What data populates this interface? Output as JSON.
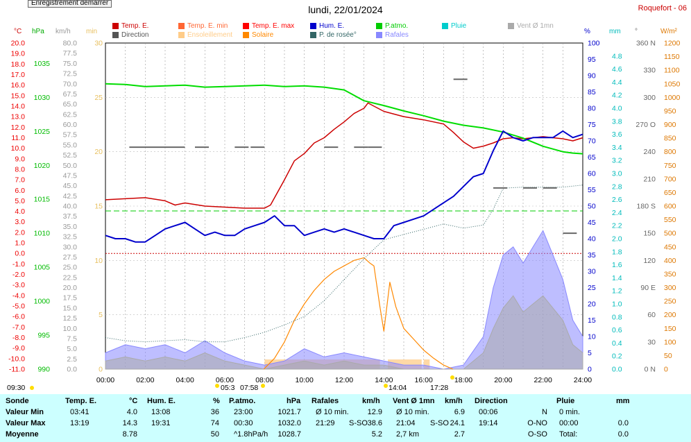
{
  "button": {
    "label": "Enregistrement démarrer"
  },
  "title": "lundi, 22/01/2024",
  "station": "Roquefort - 06",
  "units": {
    "temp": "°C",
    "hpa": "hPa",
    "kmh": "km/h",
    "min": "min",
    "pct": "%",
    "mm": "mm",
    "deg": "°",
    "wm2": "W/m²"
  },
  "legend": [
    {
      "label": "Temp. E.",
      "color": "#cc0000"
    },
    {
      "label": "Temp. E. min",
      "color": "#ff6633"
    },
    {
      "label": "Temp. E. max",
      "color": "#ff0000"
    },
    {
      "label": "Hum. E.",
      "color": "#0000cc"
    },
    {
      "label": "P.atmo.",
      "color": "#00cc00"
    },
    {
      "label": "Pluie",
      "color": "#00cccc"
    },
    {
      "label": "Vent Ø 1mn",
      "color": "#aaaaaa"
    },
    {
      "label": "Direction",
      "color": "#555555"
    },
    {
      "label": "Ensoleillement",
      "color": "#ffcc88"
    },
    {
      "label": "Solaire",
      "color": "#ff8800"
    },
    {
      "label": "P. de rosée°",
      "color": "#336666"
    },
    {
      "label": "Rafales",
      "color": "#8888ff"
    }
  ],
  "markers": {
    "sunrise_left": "09:30",
    "dawn": "05:3",
    "sunrise": "07:58",
    "max_sun": "14:04",
    "sunset": "17:28"
  },
  "chart_data": {
    "type": "line",
    "xlabel": "",
    "x_ticks": [
      "00:00",
      "02:00",
      "04:00",
      "06:00",
      "08:00",
      "10:00",
      "12:00",
      "14:00",
      "16:00",
      "18:00",
      "20:00",
      "22:00",
      "24:00"
    ],
    "axes": {
      "temp_c": {
        "range": [
          -11,
          20
        ],
        "ticks": [
          "20.0",
          "19.0",
          "18.0",
          "17.0",
          "16.0",
          "15.0",
          "14.0",
          "13.0",
          "12.0",
          "11.0",
          "10.0",
          "9.0",
          "8.0",
          "7.0",
          "6.0",
          "5.0",
          "4.0",
          "3.0",
          "2.0",
          "1.0",
          "0.0",
          "-1.0",
          "-2.0",
          "-3.0",
          "-4.0",
          "-5.0",
          "-6.0",
          "-7.0",
          "-8.0",
          "-9.0",
          "-10.0",
          "-11.0"
        ]
      },
      "pressure_hpa": {
        "range": [
          990,
          1038
        ],
        "ticks": [
          "1035",
          "1030",
          "1025",
          "1020",
          "1015",
          "1010",
          "1005",
          "1000",
          "995",
          "990"
        ]
      },
      "wind_kmh": {
        "range": [
          0,
          80
        ],
        "ticks": [
          "80.0",
          "77.5",
          "75.0",
          "72.5",
          "70.0",
          "67.5",
          "65.0",
          "62.5",
          "60.0",
          "57.5",
          "55.0",
          "52.5",
          "50.0",
          "47.5",
          "45.0",
          "42.5",
          "40.0",
          "37.5",
          "35.0",
          "32.5",
          "30.0",
          "27.5",
          "25.0",
          "22.5",
          "20.0",
          "17.5",
          "15.0",
          "12.5",
          "10.0",
          "7.5",
          "5.0",
          "2.5",
          "0.0"
        ]
      },
      "sun_min": {
        "range": [
          0,
          30
        ],
        "ticks": [
          "30",
          "25",
          "20",
          "15",
          "10",
          "5",
          "0"
        ]
      },
      "humidity_pct": {
        "range": [
          0,
          100
        ],
        "ticks": [
          "100",
          "95",
          "90",
          "85",
          "80",
          "75",
          "70",
          "65",
          "60",
          "55",
          "50",
          "45",
          "40",
          "35",
          "30",
          "25",
          "20",
          "15",
          "10",
          "5",
          "0"
        ]
      },
      "rain_mm": {
        "range": [
          0,
          5
        ],
        "ticks": [
          "4.8",
          "4.6",
          "4.4",
          "4.2",
          "4.0",
          "3.8",
          "3.6",
          "3.4",
          "3.2",
          "3.0",
          "2.8",
          "2.6",
          "2.4",
          "2.2",
          "2.0",
          "1.8",
          "1.6",
          "1.4",
          "1.2",
          "1.0",
          "0.8",
          "0.6",
          "0.4",
          "0.2",
          "0.0"
        ]
      },
      "direction_deg": {
        "range": [
          0,
          360
        ],
        "ticks": [
          "360 N",
          "330",
          "300",
          "270 O",
          "240",
          "210",
          "180 S",
          "150",
          "120",
          "90 E",
          "60",
          "30",
          "0 N"
        ]
      },
      "solar_wm2": {
        "range": [
          0,
          1200
        ],
        "ticks": [
          "1200",
          "1150",
          "1100",
          "1050",
          "1000",
          "950",
          "900",
          "850",
          "800",
          "750",
          "700",
          "650",
          "600",
          "550",
          "500",
          "450",
          "400",
          "350",
          "300",
          "250",
          "200",
          "150",
          "100",
          "50",
          "0"
        ]
      }
    },
    "series": [
      {
        "name": "Temp. E.",
        "axis": "temp_c",
        "x": [
          0,
          1,
          2,
          3,
          3.5,
          4,
          5,
          6,
          7,
          8,
          8.3,
          9,
          9.5,
          10,
          10.5,
          11,
          11.5,
          12,
          12.5,
          13,
          13.2,
          13.5,
          14,
          15,
          16,
          17,
          17.5,
          18,
          18.5,
          19,
          19.5,
          20,
          20.5,
          21,
          21.5,
          22,
          22.5,
          23,
          23.5,
          24
        ],
        "y": [
          5.1,
          5.2,
          5.3,
          5.0,
          4.6,
          4.8,
          4.5,
          4.4,
          4.3,
          4.3,
          4.6,
          7.0,
          8.8,
          9.5,
          10.5,
          11.0,
          11.8,
          12.5,
          13.3,
          13.8,
          14.3,
          14.0,
          13.5,
          13.0,
          12.7,
          12.3,
          11.5,
          10.6,
          10.0,
          10.2,
          10.5,
          10.9,
          11.0,
          10.9,
          11.0,
          11.1,
          11.0,
          10.9,
          10.7,
          11.0
        ]
      },
      {
        "name": "Hum. E.",
        "axis": "humidity_pct",
        "x": [
          0,
          0.5,
          1,
          1.5,
          2,
          2.5,
          3,
          3.5,
          4,
          4.5,
          5,
          5.5,
          6,
          6.5,
          7,
          7.5,
          8,
          8.5,
          9,
          9.5,
          10,
          10.5,
          11,
          11.5,
          12,
          12.5,
          13,
          13.5,
          14,
          14.5,
          15,
          15.5,
          16,
          16.5,
          17,
          17.5,
          18,
          18.5,
          19,
          19.5,
          20,
          20.5,
          21,
          21.5,
          22,
          22.5,
          23,
          23.5,
          24
        ],
        "y": [
          41,
          40,
          40,
          39,
          39,
          41,
          43,
          44,
          45,
          43,
          41,
          42,
          41,
          41,
          43,
          44,
          45,
          47,
          44,
          44,
          41,
          42,
          43,
          42,
          43,
          42,
          41,
          40,
          40,
          44,
          45,
          46,
          47,
          49,
          51,
          53,
          56,
          59,
          60,
          67,
          73,
          71,
          70,
          71,
          71,
          71,
          73,
          71,
          72
        ]
      },
      {
        "name": "P.atmo.",
        "axis": "pressure_hpa",
        "x": [
          0,
          1,
          2,
          3,
          4,
          5,
          6,
          7,
          8,
          9,
          10,
          11,
          12,
          13,
          14,
          15,
          16,
          17,
          18,
          19,
          20,
          21,
          22,
          23,
          23.5,
          24
        ],
        "y": [
          1032.0,
          1031.9,
          1031.6,
          1031.7,
          1031.8,
          1031.5,
          1031.6,
          1031.7,
          1031.8,
          1031.6,
          1031.7,
          1031.5,
          1031.1,
          1029.5,
          1028.8,
          1028.0,
          1027.3,
          1026.5,
          1025.9,
          1025.5,
          1024.9,
          1024.0,
          1022.8,
          1022.0,
          1021.8,
          1021.7
        ]
      },
      {
        "name": "P. de rosée°",
        "axis": "temp_c",
        "x": [
          0,
          1,
          2,
          3,
          4,
          5,
          6,
          7,
          8,
          9,
          10,
          11,
          12,
          13,
          14,
          15,
          16,
          17,
          18,
          19,
          19.5,
          20,
          21,
          22,
          23,
          24
        ],
        "y": [
          -8.0,
          -8.3,
          -8.4,
          -8.3,
          -8.2,
          -8.4,
          -8.4,
          -8.0,
          -7.5,
          -6.8,
          -6.0,
          -4.5,
          -2.5,
          -0.5,
          1.3,
          1.8,
          2.3,
          2.8,
          2.4,
          2.7,
          4.2,
          6.2,
          6.3,
          6.3,
          6.3,
          6.5
        ]
      },
      {
        "name": "Solaire",
        "axis": "solar_wm2",
        "x": [
          7.96,
          8.5,
          9,
          9.5,
          10,
          10.5,
          11,
          11.5,
          12,
          12.5,
          13,
          13.3,
          13.5,
          13.8,
          14,
          14.3,
          14.6,
          15,
          15.5,
          16,
          16.5,
          17,
          17.47
        ],
        "y": [
          0,
          40,
          100,
          180,
          240,
          290,
          330,
          360,
          380,
          400,
          410,
          390,
          380,
          230,
          140,
          320,
          230,
          150,
          110,
          70,
          40,
          15,
          0
        ]
      },
      {
        "name": "Vent Ø 1mn",
        "axis": "wind_kmh",
        "x": [
          0,
          1,
          2,
          3,
          4,
          5,
          6,
          7,
          8,
          9,
          10,
          11,
          12,
          13,
          14,
          15,
          16,
          17,
          18,
          19,
          19.5,
          20,
          20.5,
          21,
          21.5,
          22,
          22.5,
          23,
          23.5,
          24
        ],
        "y": [
          2,
          3,
          2,
          3,
          2,
          4,
          2,
          1,
          0,
          1,
          2,
          1,
          2,
          1,
          1,
          0,
          0,
          0,
          0,
          4,
          10,
          15,
          18,
          14,
          16,
          18,
          15,
          12,
          6,
          4
        ]
      },
      {
        "name": "Rafales",
        "axis": "wind_kmh",
        "x": [
          0,
          1,
          2,
          3,
          4,
          5,
          6,
          7,
          8,
          9,
          10,
          11,
          12,
          13,
          14,
          15,
          16,
          17,
          18,
          19,
          19.5,
          20,
          20.5,
          21,
          21.5,
          22,
          22.5,
          23,
          23.5,
          24
        ],
        "y": [
          4,
          6,
          5,
          6,
          4,
          7,
          4,
          2,
          1,
          2,
          5,
          3,
          4,
          3,
          2,
          1,
          1,
          0,
          1,
          8,
          20,
          28,
          30,
          26,
          30,
          34,
          28,
          22,
          12,
          8
        ]
      },
      {
        "name": "Direction",
        "axis": "direction_deg",
        "x": [
          1.2,
          4.5,
          6.5,
          7.3,
          11,
          12.5,
          13.2,
          17.5,
          19.5,
          21,
          22,
          23
        ],
        "y": [
          245,
          245,
          245,
          245,
          245,
          245,
          245,
          320,
          200,
          200,
          200,
          150
        ]
      }
    ],
    "reference_lines": [
      {
        "name": "freezing",
        "axis": "temp_c",
        "y": 0.0,
        "color": "#cc0000",
        "style": "dotted"
      },
      {
        "name": "threshold",
        "axis": "humidity_pct",
        "y": 48.5,
        "color": "#00cc00",
        "style": "dashed"
      }
    ],
    "sunshine_bands": [
      [
        8.0,
        13.8
      ],
      [
        14.2,
        15.9
      ],
      [
        16.0,
        16.3
      ]
    ]
  },
  "stats": {
    "headers": {
      "sonde": "Sonde",
      "temp": "Temp. E.",
      "temp_unit": "°C",
      "hum": "Hum. E.",
      "hum_unit": "%",
      "patmo": "P.atmo.",
      "patmo_unit": "hPa",
      "rafales": "Rafales",
      "rafales_unit": "km/h",
      "vent": "Vent Ø 1mn",
      "vent_unit": "km/h",
      "direction": "Direction",
      "pluie": "Pluie",
      "pluie_unit": "mm"
    },
    "rows": [
      {
        "label": "Valeur Min",
        "temp_time": "03:41",
        "temp_val": "4.0",
        "hum_time": "13:08",
        "hum_val": "36",
        "patmo_time": "23:00",
        "patmo_val": "1021.7",
        "raf_time": "Ø 10 min.",
        "raf_val": "12.9",
        "vent_time": "Ø 10 min.",
        "vent_val": "6.9",
        "dir_time": "00:06",
        "dir_val": "N",
        "pluie_time": "0 min.",
        "pluie_val": ""
      },
      {
        "label": "Valeur Max",
        "temp_time": "13:19",
        "temp_val": "14.3",
        "hum_time": "19:31",
        "hum_val": "74",
        "patmo_time": "00:30",
        "patmo_val": "1032.0",
        "raf_time": "21:29",
        "raf_dir": "S-SO",
        "raf_val": "38.6",
        "vent_time": "21:04",
        "vent_dir": "S-SO",
        "vent_val": "24.1",
        "dir_time": "19:14",
        "dir_val": "O-NO",
        "pluie_time": "00:00",
        "pluie_val": "0.0"
      },
      {
        "label": "Moyenne",
        "temp_time": "",
        "temp_val": "8.78",
        "hum_time": "",
        "hum_val": "50",
        "patmo_time": "^1.8hPa/h",
        "patmo_val": "1028.7",
        "raf_time": "",
        "raf_val": "5.2",
        "vent_time": "2,7 km",
        "vent_val": "2.7",
        "dir_time": "",
        "dir_val": "O-SO",
        "pluie_time": "Total:",
        "pluie_val": "0.0"
      }
    ]
  }
}
